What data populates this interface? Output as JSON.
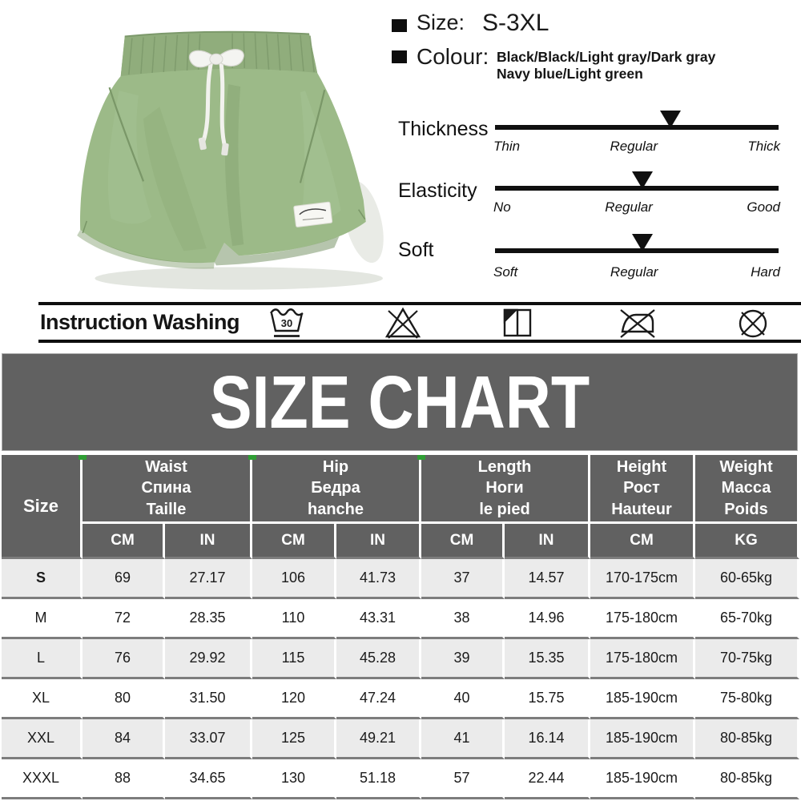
{
  "specs": {
    "size": {
      "label": "Size:",
      "value": "S-3XL"
    },
    "colour": {
      "label": "Colour:",
      "line1": "Black/Black/Light gray/Dark gray",
      "line2": "Navy blue/Light green"
    }
  },
  "sliders": [
    {
      "name": "Thickness",
      "left": "Thin",
      "center": "Regular",
      "right": "Thick",
      "marker_pct": 62
    },
    {
      "name": "Elasticity",
      "left": "No",
      "center": "Regular",
      "right": "Good",
      "marker_pct": 52
    },
    {
      "name": "Soft",
      "left": "Soft",
      "center": "Regular",
      "right": "Hard",
      "marker_pct": 52
    }
  ],
  "washing": {
    "label": "Instruction Washing",
    "temp": "30",
    "symbols": [
      "machine-wash-30-gentle",
      "do-not-bleach",
      "line-dry-in-shade",
      "do-not-iron",
      "do-not-dry-clean"
    ]
  },
  "size_chart": {
    "title": "SIZE CHART",
    "size_header": "Size",
    "groups": [
      {
        "lines": [
          "Waist",
          "Спина",
          "Taille"
        ]
      },
      {
        "lines": [
          "Hip",
          "Бедра",
          "hanche"
        ]
      },
      {
        "lines": [
          "Length",
          "Ноги",
          "le pied"
        ]
      },
      {
        "lines": [
          "Height",
          "Рост",
          "Hauteur"
        ]
      },
      {
        "lines": [
          "Weight",
          "Масса",
          "Poids"
        ]
      }
    ],
    "sub_headers": [
      "CM",
      "IN",
      "CM",
      "IN",
      "CM",
      "IN",
      "CM",
      "KG"
    ],
    "rows": [
      {
        "size": "S",
        "cells": [
          "69",
          "27.17",
          "106",
          "41.73",
          "37",
          "14.57",
          "170-175cm",
          "60-65kg"
        ]
      },
      {
        "size": "M",
        "cells": [
          "72",
          "28.35",
          "110",
          "43.31",
          "38",
          "14.96",
          "175-180cm",
          "65-70kg"
        ]
      },
      {
        "size": "L",
        "cells": [
          "76",
          "29.92",
          "115",
          "45.28",
          "39",
          "15.35",
          "175-180cm",
          "70-75kg"
        ]
      },
      {
        "size": "XL",
        "cells": [
          "80",
          "31.50",
          "120",
          "47.24",
          "40",
          "15.75",
          "185-190cm",
          "75-80kg"
        ]
      },
      {
        "size": "XXL",
        "cells": [
          "84",
          "33.07",
          "125",
          "49.21",
          "41",
          "16.14",
          "185-190cm",
          "80-85kg"
        ]
      },
      {
        "size": "XXXL",
        "cells": [
          "88",
          "34.65",
          "130",
          "51.18",
          "57",
          "22.44",
          "185-190cm",
          "80-85kg"
        ]
      }
    ]
  },
  "colors": {
    "banner_gray": "#616161",
    "row_alt_gray": "#ebebeb",
    "row_separator": "#7d7d7d",
    "green_tick": "#2f9e34",
    "shorts_green": "#9cba88",
    "text_black": "#111111"
  }
}
